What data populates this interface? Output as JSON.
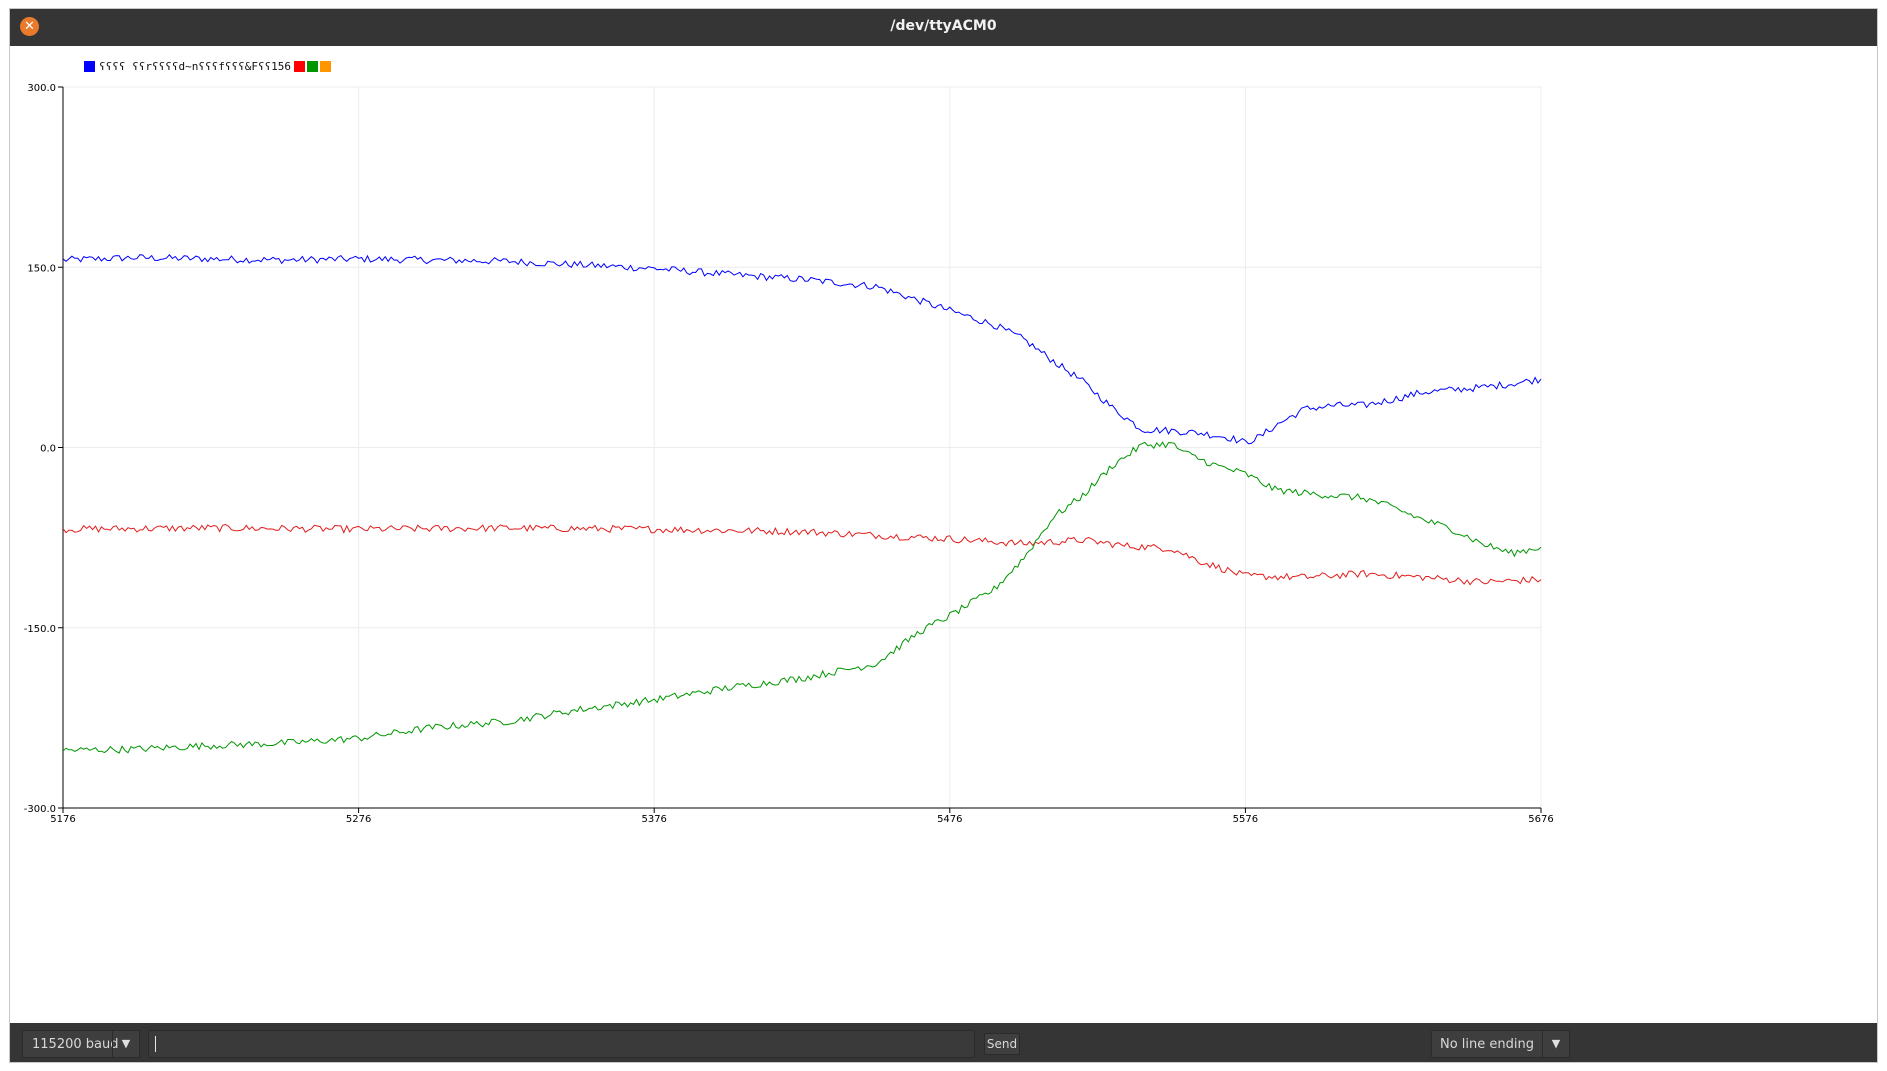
{
  "window": {
    "title": "/dev/ttyACM0",
    "close_icon": "close-icon"
  },
  "legend": {
    "text": "ʕʕʕʕ ʕʕrʕʕʕʕd~nʕʕʕfʕʕʕ&Fʕʕ156",
    "swatch_colors": [
      "#0000ff",
      "#ff0000",
      "#009600",
      "#ff9600"
    ]
  },
  "bottom_bar": {
    "baud": "115200 baud",
    "send_input_value": "",
    "send_label": "Send",
    "line_ending": "No line ending",
    "dropdown_icon": "chevron-down-icon"
  },
  "chart_data": {
    "type": "line",
    "title": "",
    "xlabel": "",
    "ylabel": "",
    "xlim": [
      5176,
      5676
    ],
    "ylim": [
      -300,
      300
    ],
    "x_ticks": [
      "5176",
      "5276",
      "5376",
      "5476",
      "5576",
      "5676"
    ],
    "y_ticks": [
      "300.0",
      "150.0",
      "0.0",
      "-150.0",
      "-300.0"
    ],
    "grid": true,
    "series": [
      {
        "color": "#0000ff",
        "x": [
          5176,
          5200,
          5226,
          5251,
          5276,
          5300,
          5326,
          5351,
          5376,
          5401,
          5426,
          5451,
          5476,
          5491,
          5501,
          5511,
          5521,
          5531,
          5541,
          5551,
          5561,
          5571,
          5576,
          5581,
          5586,
          5596,
          5606,
          5616,
          5626,
          5636,
          5646,
          5656,
          5666,
          5676
        ],
        "y": [
          156,
          158,
          157,
          156,
          157,
          156,
          155,
          152,
          149,
          144,
          140,
          134,
          114,
          102,
          90,
          72,
          55,
          33,
          15,
          14,
          12,
          8,
          4,
          9,
          18,
          32,
          35,
          35,
          40,
          46,
          48,
          50,
          53,
          57
        ]
      },
      {
        "color": "#e41b1b",
        "x": [
          5176,
          5226,
          5276,
          5326,
          5376,
          5426,
          5476,
          5501,
          5521,
          5536,
          5551,
          5561,
          5576,
          5596,
          5616,
          5636,
          5656,
          5676
        ],
        "y": [
          -68,
          -67,
          -68,
          -67,
          -68,
          -70,
          -76,
          -80,
          -77,
          -82,
          -84,
          -95,
          -107,
          -108,
          -105,
          -108,
          -112,
          -110
        ]
      },
      {
        "color": "#009600",
        "x": [
          5176,
          5201,
          5226,
          5251,
          5276,
          5301,
          5326,
          5351,
          5376,
          5401,
          5426,
          5451,
          5466,
          5476,
          5491,
          5501,
          5511,
          5521,
          5531,
          5541,
          5551,
          5556,
          5561,
          5566,
          5576,
          5586,
          5596,
          5606,
          5616,
          5626,
          5636,
          5646,
          5656,
          5666,
          5676
        ],
        "y": [
          -252,
          -251,
          -248,
          -246,
          -242,
          -233,
          -228,
          -218,
          -210,
          -200,
          -192,
          -180,
          -153,
          -140,
          -118,
          -92,
          -58,
          -40,
          -15,
          2,
          3,
          -5,
          -10,
          -15,
          -22,
          -35,
          -38,
          -40,
          -42,
          -50,
          -60,
          -68,
          -80,
          -88,
          -83
        ]
      },
      {
        "color": "#ff9600",
        "x": [],
        "y": []
      }
    ]
  }
}
